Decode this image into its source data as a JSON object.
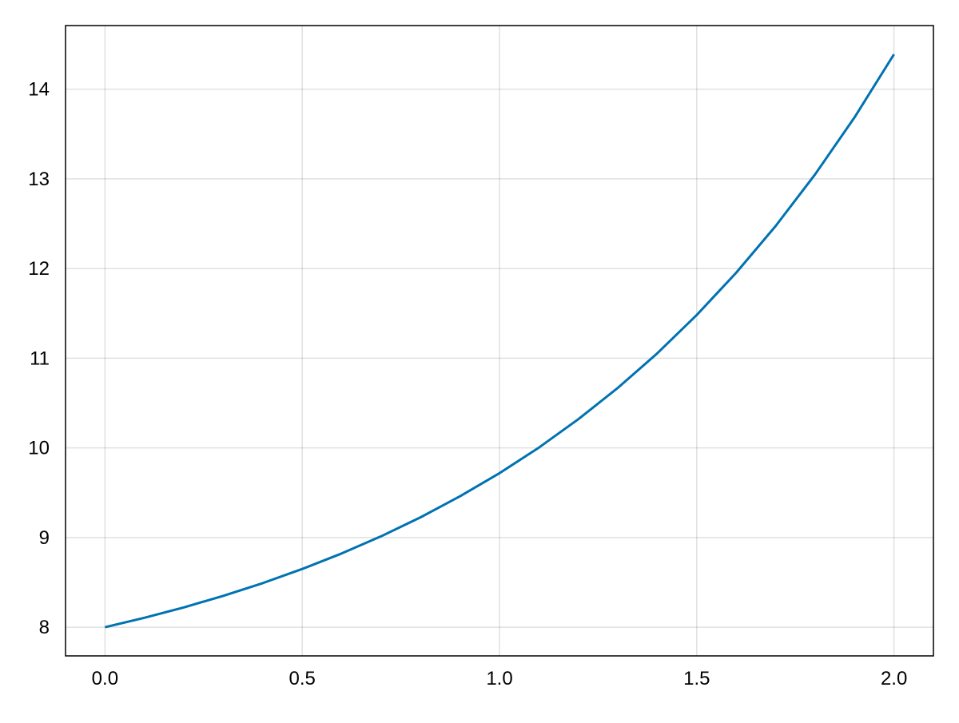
{
  "chart_data": {
    "type": "line",
    "title": "",
    "xlabel": "",
    "ylabel": "",
    "xlim": [
      -0.1,
      2.1
    ],
    "ylim": [
      7.68,
      14.71
    ],
    "grid": true,
    "x_ticks": [
      "0.0",
      "0.5",
      "1.0",
      "1.5",
      "2.0"
    ],
    "x_tick_values": [
      0,
      0.5,
      1.0,
      1.5,
      2.0
    ],
    "y_ticks": [
      "8",
      "9",
      "10",
      "11",
      "12",
      "13",
      "14"
    ],
    "y_tick_values": [
      8,
      9,
      10,
      11,
      12,
      13,
      14
    ],
    "series": [
      {
        "color": "#0072b2",
        "x": [
          0,
          0.1,
          0.2,
          0.3,
          0.4,
          0.5,
          0.6,
          0.7,
          0.8,
          0.9,
          1.0,
          1.1,
          1.2,
          1.3,
          1.4,
          1.5,
          1.6,
          1.7,
          1.8,
          1.9,
          2.0
        ],
        "y": [
          8.0,
          8.105,
          8.221,
          8.35,
          8.492,
          8.649,
          8.822,
          9.014,
          9.226,
          9.46,
          9.718,
          10.004,
          10.32,
          10.669,
          11.055,
          11.482,
          11.953,
          12.474,
          13.05,
          13.686,
          14.389
        ]
      }
    ]
  }
}
